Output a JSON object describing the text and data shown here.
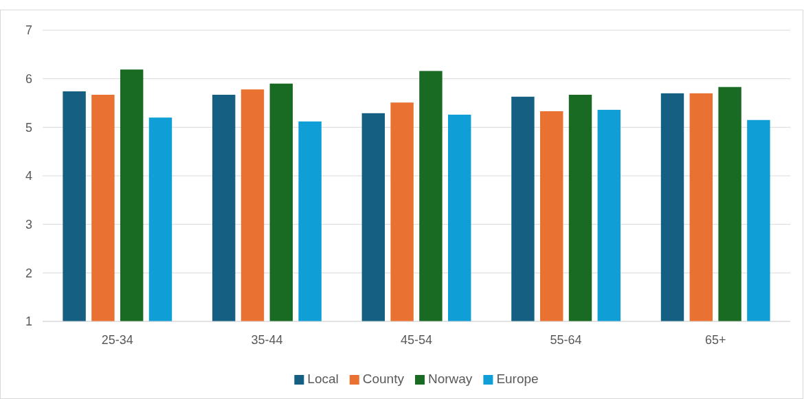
{
  "chart_data": {
    "type": "bar",
    "categories": [
      "25-34",
      "35-44",
      "45-54",
      "55-64",
      "65+"
    ],
    "series": [
      {
        "name": "Local",
        "color": "#156082",
        "values": [
          5.74,
          5.67,
          5.29,
          5.63,
          5.7
        ]
      },
      {
        "name": "County",
        "color": "#e97132",
        "values": [
          5.67,
          5.78,
          5.51,
          5.33,
          5.7
        ]
      },
      {
        "name": "Norway",
        "color": "#196b24",
        "values": [
          6.19,
          5.9,
          6.16,
          5.67,
          5.83
        ]
      },
      {
        "name": "Europe",
        "color": "#0f9ed5",
        "values": [
          5.2,
          5.12,
          5.26,
          5.36,
          5.15
        ]
      }
    ],
    "ylim": [
      1,
      7
    ],
    "yticks": [
      1,
      2,
      3,
      4,
      5,
      6,
      7
    ],
    "grid": "y",
    "legend": "bottom"
  }
}
